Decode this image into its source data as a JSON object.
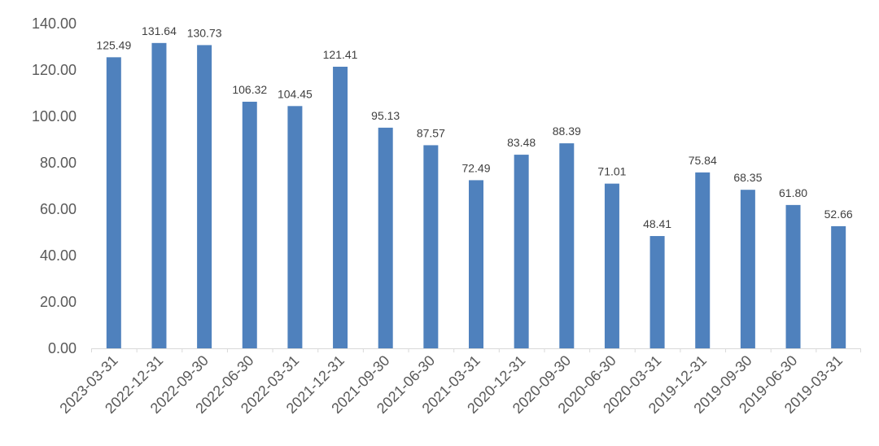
{
  "chart_data": {
    "type": "bar",
    "categories": [
      "2023-03-31",
      "2022-12-31",
      "2022-09-30",
      "2022-06-30",
      "2022-03-31",
      "2021-12-31",
      "2021-09-30",
      "2021-06-30",
      "2021-03-31",
      "2020-12-31",
      "2020-09-30",
      "2020-06-30",
      "2020-03-31",
      "2019-12-31",
      "2019-09-30",
      "2019-06-30",
      "2019-03-31"
    ],
    "values": [
      125.49,
      131.64,
      130.73,
      106.32,
      104.45,
      121.41,
      95.13,
      87.57,
      72.49,
      83.48,
      88.39,
      71.01,
      48.41,
      75.84,
      68.35,
      61.8,
      52.66
    ],
    "value_labels": [
      "125.49",
      "131.64",
      "130.73",
      "106.32",
      "104.45",
      "121.41",
      "95.13",
      "87.57",
      "72.49",
      "83.48",
      "88.39",
      "71.01",
      "48.41",
      "75.84",
      "68.35",
      "61.80",
      "52.66"
    ],
    "yticks": [
      "0.00",
      "20.00",
      "40.00",
      "60.00",
      "80.00",
      "100.00",
      "120.00",
      "140.00"
    ],
    "ylim": [
      0,
      140
    ],
    "grid": false,
    "legend": "none",
    "bar_color": "#4f81bd"
  }
}
